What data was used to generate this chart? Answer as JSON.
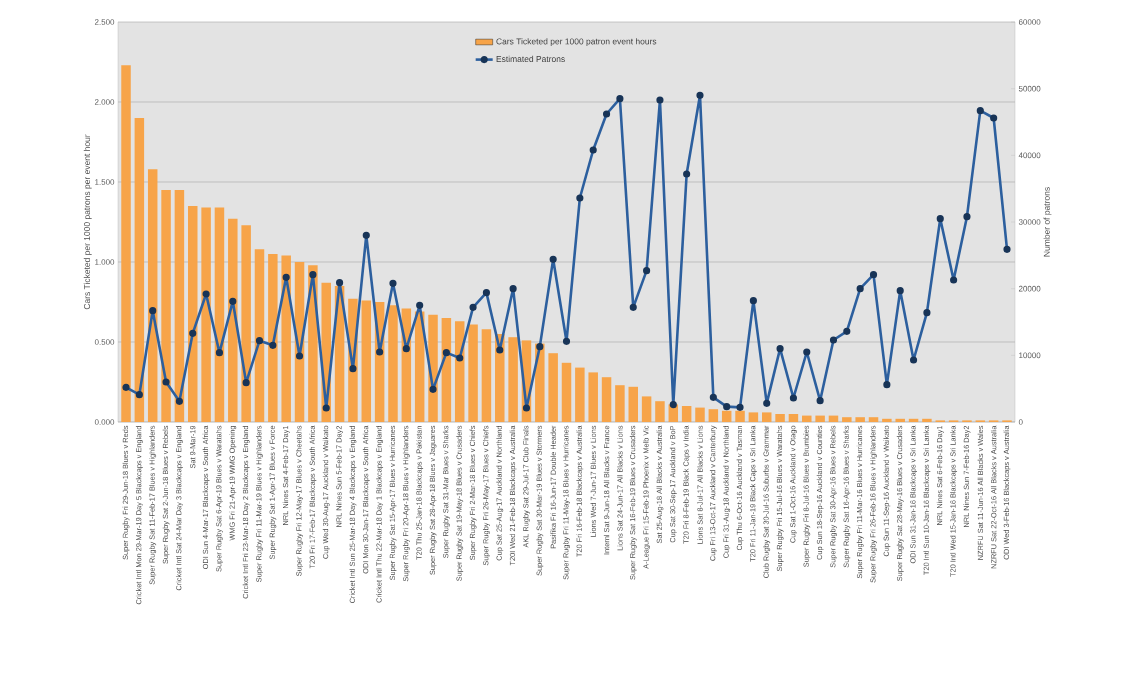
{
  "chart_data": {
    "type": "bar",
    "ylabel": "Cars Ticketed  per 1000 patrons per event hour",
    "y2label": "Number of patrons",
    "categories": [
      "Super Rugby Fri 29-Jun-18 Blues v Reds",
      "Cricket Intl Mon 29-Mar-19 Day 5 Blackcaps v England",
      "Super Rugby Sat 11-Feb-17 Blues v Highlanders",
      "Super Rugby Sat 2-Jun-18 Blues v Rebels",
      "Cricket Intl Sat 24-Mar Day 3 Blackcaps v England",
      "Sat 9-Mar-19",
      "ODI Sun 4-Mar-17 Blackcaps v South Africa",
      "Super Rugby Sat 6-Apr-19 Blues v Waratahs",
      "WMG Fri 21-Apr-19 WMG Opening",
      "Cricket Intl Fri 23-Mar-18 Day 2 Blackcaps v England",
      "Super Rugby Fri 11-Mar-19 Blues v Highlanders",
      "Super Rugby Sat 1-Apr-17 Blues v Force",
      "NRL Nines Sat 4-Feb-17 Day1",
      "Super Rugby Fri 12-May-17 Blues v Cheetahs",
      "T20 Fri 17-Feb-17 Blackcaps v South Africa",
      "Cup Wed 30-Aug-17 Auckland v Waikato",
      "NRL Nines Sun 5-Feb-17 Day2",
      "Cricket Intl Sun 25-Mar-18 Day 4 Blackcaps v England",
      "ODI Mon 30-Jan-17 Blackcaps v South Africa",
      "Cricket Intl Thu 22-Mar-18 Day 1 Blackcaps v England",
      "Super Rugby Sat 15-Apr-17 Blues v Hurricanes",
      "Super Rugby Fri 20-Apr-18 Blues v Highlanders",
      "T20 Thu 25-Jan-18 Blackcaps v Pakistan",
      "Super Rugby Sat 28-Apr-18 Blues v Jaguares",
      "Super Rugby Sat 31-Mar Blues v Sharks",
      "Super Rugby Sat 19-May-18 Blues v Crusaders",
      "Super Rugby Fri 2-Mar-18 Blues v Chiefs",
      "Super Rugby Fri 26-May-17 Blues v Chiefs",
      "Cup Sat 25-Aug-17 Auckland v Northland",
      "T20I Wed 21-Feb-18 Blackcaps v Australia",
      "AKL Rugby Sat 29-Jul-17 Club Finals",
      "Super Rugby Sat 30-Mar-19 Blues v Stormers",
      "Pasifika Fri 16-Jun-17 Double Header",
      "Super Rugby Fri 11-May-18 Blues v Hurricanes",
      "T20 Fri 16-Feb-18 Blackcaps v Australia",
      "Lions Wed 7-Jun-17 Blues v Lions",
      "Internl Sat 9-Jun-18 All Blacks v France",
      "Lions Sat 24-Jun-17 All Blacks v Lions",
      "Super Rugby Sat 16-Feb-19 Blues v Crusaders",
      "A-League Fri 15-Feb-19 Phoenix v Melb Vic",
      "Sat 25-Aug-18 All Blacks v Australia",
      "Cup Sat 30-Sep-17 Auckland v BoP",
      "T20 Fri 8-Feb-19 Black Caps v India",
      "Lions Sat 8-Jul-17 All Blacks v Lions",
      "Cup Fri 13-Oct-17 Auckland v Canterbury",
      "Cup Fri 31-Aug-18 Auckland v Northland",
      "Cup Thu 6-Oct-16 Auckland v Tasman",
      "T20 Fri 11-Jan-19 Black Caps v Sri Lanka",
      "Club Rugby Sat 30-Jul-16 Suburbs v Grammar",
      "Super Rugby Fri 15-Jul-16 Blues v Waratahs",
      "Cup Sat 1-Oct-16 Auckland v Otago",
      "Super Rugby Fri 8-Jul-16 Blues v Brumbies",
      "Cup Sun 18-Sep-16 Auckland v Counties",
      "Super Rugby Sat 30-Apr-16 Blues v Rebels",
      "Super Rugby Sat 16-Apr-16 Blues v Sharks",
      "Super Rugby Fri 11-Mar-16 Blues v Hurricanes",
      "Super Rugby Fri 26-Feb-16 Blues v Highlanders",
      "Cup Sun 11-Sep-16 Auckland v Waikato",
      "Super Rugby Sat 28-May-16 Blues v Crusaders",
      "ODI Sun 31-Jan-16 Blackcaps v Sri Lanka",
      "T20 Intl Sun 10-Jan-16 Blackcaps v Sri Lanka",
      "NRL Nines Sat 6-Feb-16 Day1",
      "T20 Intl Wed 15-Jan-16 Blackcaps v Sri Lanka",
      "NRL Nines Sun 7-Feb-16 Day2",
      "NZRFU Sat 11-Jun-16 All Blacks v Wales",
      "NZRFU Sat 22-Oct-16 All Blacks v Australia",
      "ODI Wed 3-Feb-16 Blackcaps v Australia"
    ],
    "series": [
      {
        "name": "Cars Ticketed  per 1000 patron event hours",
        "color": "#f7a449",
        "values": [
          2.23,
          1.9,
          1.58,
          1.45,
          1.45,
          1.35,
          1.34,
          1.34,
          1.27,
          1.23,
          1.08,
          1.05,
          1.04,
          1.0,
          0.98,
          0.87,
          0.85,
          0.77,
          0.76,
          0.75,
          0.73,
          0.71,
          0.69,
          0.67,
          0.65,
          0.63,
          0.61,
          0.58,
          0.55,
          0.53,
          0.51,
          0.49,
          0.43,
          0.37,
          0.34,
          0.31,
          0.28,
          0.23,
          0.22,
          0.16,
          0.13,
          0.11,
          0.1,
          0.09,
          0.08,
          0.07,
          0.07,
          0.06,
          0.06,
          0.05,
          0.05,
          0.04,
          0.04,
          0.04,
          0.03,
          0.03,
          0.03,
          0.02,
          0.02,
          0.02,
          0.02,
          0.01,
          0.01,
          0.01,
          0.01,
          0.01,
          0.01
        ]
      },
      {
        "name": "Estimated Patrons",
        "type": "line",
        "axis": "y2",
        "color": "#2c5f9e",
        "values": [
          5200,
          4100,
          16700,
          6000,
          3100,
          13300,
          19200,
          10400,
          18100,
          5900,
          12200,
          11500,
          21700,
          9900,
          22100,
          2100,
          20900,
          8000,
          28000,
          10500,
          20800,
          11000,
          17500,
          4900,
          10400,
          9600,
          17200,
          19400,
          10800,
          20000,
          2100,
          11300,
          24400,
          12100,
          33600,
          40800,
          46200,
          48500,
          17200,
          22700,
          48300,
          2600,
          37200,
          49000,
          3700,
          2300,
          2200,
          18200,
          2800,
          11000,
          3600,
          10500,
          3200,
          12300,
          13600,
          20000,
          22100,
          5600,
          19700,
          9300,
          16400,
          30500,
          21300,
          30800,
          46700,
          45600,
          25900
        ]
      }
    ],
    "ylim": [
      0,
      2.5
    ],
    "yticks": [
      {
        "value": 0,
        "label": "0.000"
      },
      {
        "value": 0.5,
        "label": "0.500"
      },
      {
        "value": 1,
        "label": "1.000"
      },
      {
        "value": 1.5,
        "label": "1.500"
      },
      {
        "value": 2,
        "label": "2.000"
      },
      {
        "value": 2.5,
        "label": "2.500"
      }
    ],
    "y2lim": [
      0,
      60000
    ],
    "y2ticks": [
      0,
      10000,
      20000,
      30000,
      40000,
      50000,
      60000
    ],
    "grid": "y",
    "legend": "top",
    "marker": "circle",
    "line_style": "solid"
  }
}
